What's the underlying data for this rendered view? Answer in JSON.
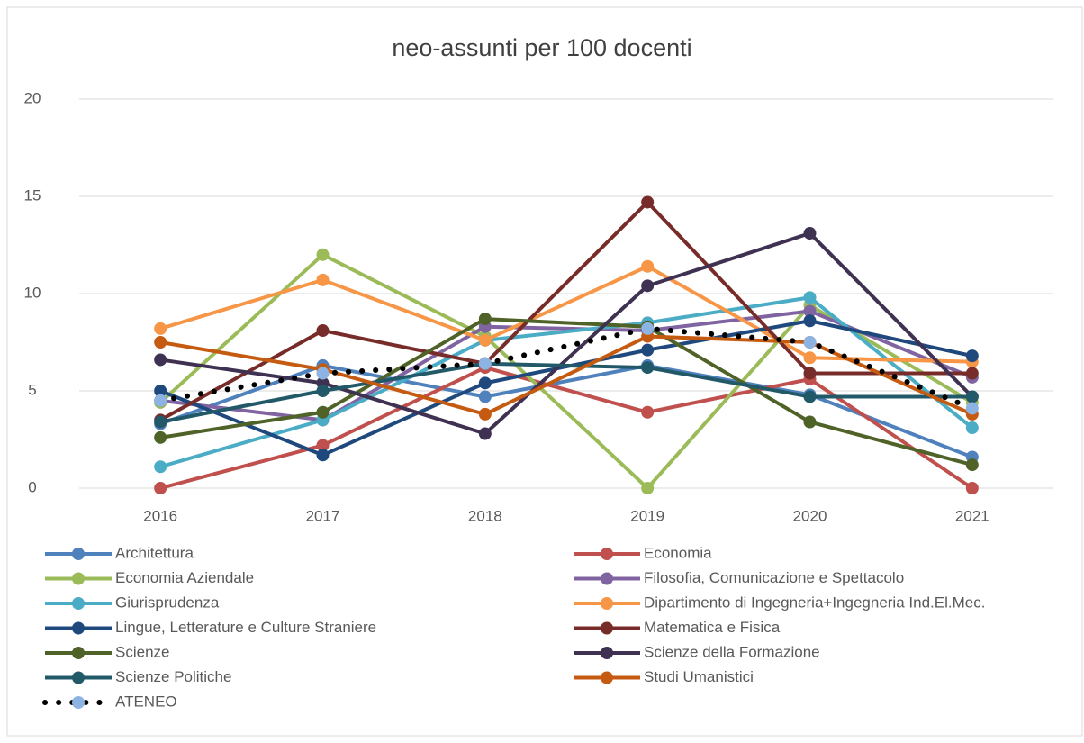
{
  "chart_data": {
    "type": "line",
    "title": "neo-assunti per 100 docenti",
    "categories": [
      "2016",
      "2017",
      "2018",
      "2019",
      "2020",
      "2021"
    ],
    "ylim": [
      0,
      20
    ],
    "yticks": [
      0,
      5,
      10,
      15,
      20
    ],
    "grid": true,
    "legend": "bottom",
    "series": [
      {
        "name": "Architettura",
        "color": "#4f81bd",
        "values": [
          3.3,
          6.3,
          4.7,
          6.3,
          4.8,
          1.6
        ]
      },
      {
        "name": "Economia",
        "color": "#c0504d",
        "values": [
          0,
          2.2,
          6.2,
          3.9,
          5.6,
          0
        ]
      },
      {
        "name": "Economia Aziendale",
        "color": "#9bbb59",
        "values": [
          4.4,
          12,
          7.8,
          0,
          9.4,
          4.4
        ]
      },
      {
        "name": "Filosofia, Comunicazione e Spettacolo",
        "color": "#8064a2",
        "values": [
          4.5,
          3.5,
          8.3,
          8.1,
          9.1,
          5.7
        ]
      },
      {
        "name": "Giurisprudenza",
        "color": "#4bacc6",
        "values": [
          1.1,
          3.5,
          7.6,
          8.5,
          9.8,
          3.1
        ]
      },
      {
        "name": "Dipartimento di Ingegneria+Ingegneria Ind.El.Mec.",
        "color": "#f79646",
        "values": [
          8.2,
          10.7,
          7.6,
          11.4,
          6.7,
          6.5
        ]
      },
      {
        "name": "Lingue, Letterature e Culture Straniere",
        "color": "#1f497d",
        "values": [
          5.0,
          1.7,
          5.4,
          7.1,
          8.6,
          6.8
        ]
      },
      {
        "name": "Matematica e Fisica",
        "color": "#772c2a",
        "values": [
          3.5,
          8.1,
          6.4,
          14.7,
          5.9,
          5.9
        ]
      },
      {
        "name": "Scienze",
        "color": "#4f6228",
        "values": [
          2.6,
          3.9,
          8.7,
          8.3,
          3.4,
          1.2
        ]
      },
      {
        "name": "Scienze della Formazione",
        "color": "#3f3151",
        "values": [
          6.6,
          5.4,
          2.8,
          10.4,
          13.1,
          4.7
        ]
      },
      {
        "name": "Scienze Politiche",
        "color": "#215968",
        "values": [
          3.4,
          5.0,
          6.4,
          6.2,
          4.7,
          4.7
        ]
      },
      {
        "name": "Studi Umanistici",
        "color": "#c55a11",
        "values": [
          7.5,
          6.1,
          3.8,
          7.8,
          7.5,
          3.8
        ]
      },
      {
        "name": "ATENEO",
        "color": "#000000",
        "marker_color": "#8db3e2",
        "style": "dotted",
        "values": [
          4.5,
          5.9,
          6.4,
          8.2,
          7.5,
          4.1
        ]
      }
    ]
  }
}
